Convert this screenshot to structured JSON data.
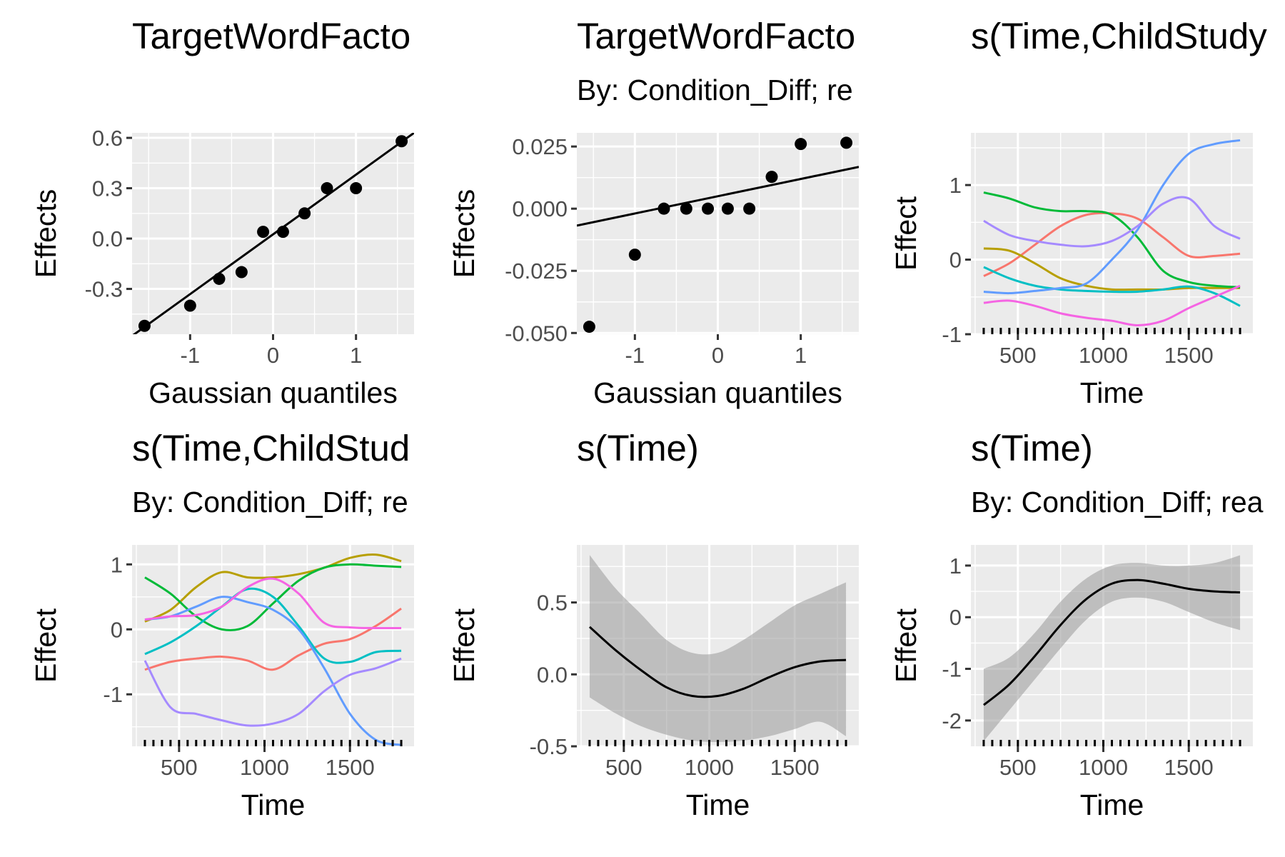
{
  "chart_data": [
    {
      "type": "scatter",
      "title": "TargetWordFacto",
      "subtitle": "",
      "xlabel": "Gaussian quantiles",
      "ylabel": "Effects",
      "xlim": [
        -1.7,
        1.7
      ],
      "ylim": [
        -0.57,
        0.63
      ],
      "xticks": [
        -1,
        0,
        1
      ],
      "xtick_labels": [
        "-1",
        "0",
        "1"
      ],
      "yticks": [
        -0.3,
        0.0,
        0.3,
        0.6
      ],
      "ytick_labels": [
        "-0.3",
        "0.0",
        "0.3",
        "0.6"
      ],
      "grid": true,
      "points": [
        {
          "x": -1.55,
          "y": -0.52
        },
        {
          "x": -1.0,
          "y": -0.4
        },
        {
          "x": -0.65,
          "y": -0.24
        },
        {
          "x": -0.38,
          "y": -0.2
        },
        {
          "x": -0.12,
          "y": 0.04
        },
        {
          "x": 0.12,
          "y": 0.04
        },
        {
          "x": 0.38,
          "y": 0.15
        },
        {
          "x": 0.65,
          "y": 0.3
        },
        {
          "x": 1.0,
          "y": 0.3
        },
        {
          "x": 1.55,
          "y": 0.58
        }
      ],
      "reference_line": {
        "x": [
          -1.7,
          1.7
        ],
        "y": [
          -0.58,
          0.63
        ]
      }
    },
    {
      "type": "scatter",
      "title": "TargetWordFacto",
      "subtitle": "By: Condition_Diff; re",
      "xlabel": "Gaussian quantiles",
      "ylabel": "Effects",
      "xlim": [
        -1.7,
        1.7
      ],
      "ylim": [
        -0.0505,
        0.0305
      ],
      "xticks": [
        -1,
        0,
        1
      ],
      "xtick_labels": [
        "-1",
        "0",
        "1"
      ],
      "yticks": [
        -0.05,
        -0.025,
        0.0,
        0.025
      ],
      "ytick_labels": [
        "-0.050",
        "-0.025",
        "0.000",
        "0.025"
      ],
      "grid": true,
      "points": [
        {
          "x": -1.55,
          "y": -0.0475
        },
        {
          "x": -1.0,
          "y": -0.0185
        },
        {
          "x": -0.65,
          "y": 0.0
        },
        {
          "x": -0.38,
          "y": 0.0
        },
        {
          "x": -0.12,
          "y": 0.0
        },
        {
          "x": 0.12,
          "y": 0.0
        },
        {
          "x": 0.38,
          "y": 0.0
        },
        {
          "x": 0.65,
          "y": 0.0128
        },
        {
          "x": 1.0,
          "y": 0.026
        },
        {
          "x": 1.55,
          "y": 0.0265
        }
      ],
      "reference_line": {
        "x": [
          -1.7,
          1.7
        ],
        "y": [
          -0.0068,
          0.0168
        ]
      }
    },
    {
      "type": "line",
      "title": "s(Time,ChildStudy",
      "subtitle": "",
      "xlabel": "Time",
      "ylabel": "Effect",
      "xlim": [
        225,
        1875
      ],
      "ylim": [
        -1.0,
        1.7
      ],
      "xticks": [
        500,
        1000,
        1500
      ],
      "xtick_labels": [
        "500",
        "1000",
        "1500"
      ],
      "yticks": [
        -1,
        0,
        1
      ],
      "ytick_labels": [
        "-1",
        "0",
        "1"
      ],
      "grid": true,
      "rug": true,
      "x": [
        300,
        450,
        600,
        750,
        900,
        1050,
        1200,
        1350,
        1500,
        1650,
        1800
      ],
      "series": [
        {
          "color": "#F8766D",
          "values": [
            -0.22,
            -0.05,
            0.2,
            0.45,
            0.6,
            0.62,
            0.55,
            0.3,
            0.05,
            0.05,
            0.08
          ]
        },
        {
          "color": "#B79F00",
          "values": [
            0.15,
            0.12,
            -0.05,
            -0.25,
            -0.35,
            -0.4,
            -0.4,
            -0.4,
            -0.38,
            -0.38,
            -0.38
          ]
        },
        {
          "color": "#00BA38",
          "values": [
            0.9,
            0.82,
            0.7,
            0.65,
            0.65,
            0.6,
            0.3,
            -0.15,
            -0.3,
            -0.35,
            -0.37
          ]
        },
        {
          "color": "#00BFC4",
          "values": [
            -0.1,
            -0.25,
            -0.35,
            -0.4,
            -0.42,
            -0.43,
            -0.43,
            -0.4,
            -0.36,
            -0.45,
            -0.62
          ]
        },
        {
          "color": "#619CFF",
          "values": [
            -0.43,
            -0.45,
            -0.42,
            -0.38,
            -0.32,
            0.0,
            0.4,
            1.0,
            1.42,
            1.55,
            1.6
          ]
        },
        {
          "color": "#F564E3",
          "values": [
            -0.58,
            -0.55,
            -0.62,
            -0.72,
            -0.78,
            -0.82,
            -0.88,
            -0.82,
            -0.65,
            -0.5,
            -0.35
          ]
        },
        {
          "color": "#A58AFF",
          "values": [
            0.52,
            0.33,
            0.25,
            0.2,
            0.18,
            0.25,
            0.45,
            0.75,
            0.82,
            0.45,
            0.28
          ]
        }
      ]
    },
    {
      "type": "line",
      "title": "s(Time,ChildStud",
      "subtitle": "By: Condition_Diff; re",
      "xlabel": "Time",
      "ylabel": "Effect",
      "xlim": [
        225,
        1875
      ],
      "ylim": [
        -1.8,
        1.3
      ],
      "xticks": [
        500,
        1000,
        1500
      ],
      "xtick_labels": [
        "500",
        "1000",
        "1500"
      ],
      "yticks": [
        -1,
        0,
        1
      ],
      "ytick_labels": [
        "-1",
        "0",
        "1"
      ],
      "grid": true,
      "rug": true,
      "x": [
        300,
        450,
        600,
        750,
        900,
        1050,
        1200,
        1350,
        1500,
        1650,
        1800
      ],
      "series": [
        {
          "color": "#F8766D",
          "values": [
            -0.62,
            -0.5,
            -0.45,
            -0.42,
            -0.48,
            -0.62,
            -0.4,
            -0.22,
            -0.15,
            0.05,
            0.32
          ]
        },
        {
          "color": "#B79F00",
          "values": [
            0.12,
            0.3,
            0.65,
            0.88,
            0.8,
            0.8,
            0.85,
            0.95,
            1.1,
            1.15,
            1.05
          ]
        },
        {
          "color": "#00BA38",
          "values": [
            0.8,
            0.55,
            0.2,
            0.0,
            0.05,
            0.4,
            0.75,
            0.95,
            1.0,
            0.98,
            0.96
          ]
        },
        {
          "color": "#00BFC4",
          "values": [
            -0.38,
            -0.2,
            0.05,
            0.35,
            0.62,
            0.5,
            0.05,
            -0.45,
            -0.5,
            -0.35,
            -0.33
          ]
        },
        {
          "color": "#619CFF",
          "values": [
            0.15,
            0.2,
            0.35,
            0.5,
            0.42,
            0.3,
            0.0,
            -0.6,
            -1.3,
            -1.7,
            -1.78
          ]
        },
        {
          "color": "#F564E3",
          "values": [
            0.15,
            0.2,
            0.22,
            0.35,
            0.65,
            0.78,
            0.55,
            0.1,
            0.03,
            0.02,
            0.02
          ]
        },
        {
          "color": "#A58AFF",
          "values": [
            -0.48,
            -1.2,
            -1.3,
            -1.4,
            -1.48,
            -1.45,
            -1.3,
            -0.95,
            -0.7,
            -0.6,
            -0.45
          ]
        }
      ]
    },
    {
      "type": "line",
      "title": "s(Time)",
      "subtitle": "",
      "xlabel": "Time",
      "ylabel": "Effect",
      "xlim": [
        225,
        1875
      ],
      "ylim": [
        -0.5,
        0.9
      ],
      "xticks": [
        500,
        1000,
        1500
      ],
      "xtick_labels": [
        "500",
        "1000",
        "1500"
      ],
      "yticks": [
        -0.5,
        0.0,
        0.5
      ],
      "ytick_labels": [
        "-0.5",
        "0.0",
        "0.5"
      ],
      "grid": true,
      "rug": true,
      "x": [
        300,
        450,
        600,
        750,
        900,
        1050,
        1200,
        1350,
        1500,
        1650,
        1800
      ],
      "series": [
        {
          "color": "#000000",
          "values": [
            0.33,
            0.17,
            0.03,
            -0.09,
            -0.15,
            -0.15,
            -0.1,
            -0.02,
            0.05,
            0.09,
            0.1
          ]
        }
      ],
      "band": {
        "lower": [
          -0.16,
          -0.27,
          -0.36,
          -0.42,
          -0.46,
          -0.47,
          -0.46,
          -0.43,
          -0.38,
          -0.33,
          -0.43
        ],
        "upper": [
          0.83,
          0.6,
          0.42,
          0.24,
          0.15,
          0.15,
          0.24,
          0.36,
          0.48,
          0.56,
          0.64
        ]
      }
    },
    {
      "type": "line",
      "title": "s(Time)",
      "subtitle": "By: Condition_Diff; rea",
      "xlabel": "Time",
      "ylabel": "Effect",
      "xlim": [
        225,
        1875
      ],
      "ylim": [
        -2.5,
        1.4
      ],
      "xticks": [
        500,
        1000,
        1500
      ],
      "xtick_labels": [
        "500",
        "1000",
        "1500"
      ],
      "yticks": [
        -2,
        -1,
        0,
        1
      ],
      "ytick_labels": [
        "-2",
        "-1",
        "0",
        "1"
      ],
      "grid": true,
      "rug": true,
      "x": [
        300,
        450,
        600,
        750,
        900,
        1050,
        1200,
        1350,
        1500,
        1650,
        1800
      ],
      "series": [
        {
          "color": "#000000",
          "values": [
            -1.7,
            -1.3,
            -0.75,
            -0.15,
            0.35,
            0.65,
            0.72,
            0.65,
            0.55,
            0.5,
            0.48
          ]
        }
      ],
      "band": {
        "lower": [
          -2.4,
          -1.8,
          -1.2,
          -0.6,
          -0.05,
          0.3,
          0.38,
          0.3,
          0.1,
          -0.1,
          -0.25
        ],
        "upper": [
          -1.0,
          -0.78,
          -0.3,
          0.3,
          0.75,
          1.0,
          1.05,
          1.0,
          1.0,
          1.05,
          1.2
        ]
      }
    }
  ]
}
